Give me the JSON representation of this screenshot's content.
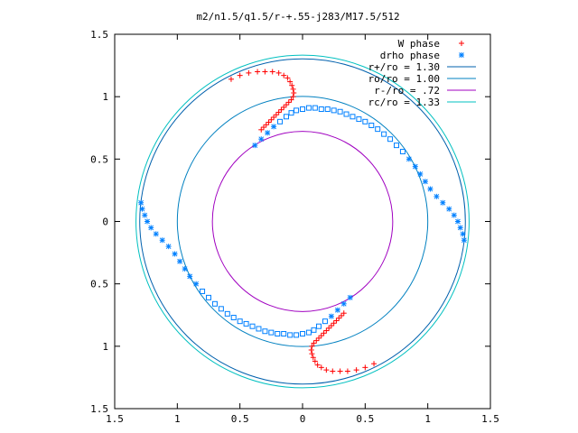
{
  "chart_data": {
    "type": "scatter",
    "title": "m2/n1.5/q1.5/r-+.55-j283/M17.5/512",
    "xlabel": "",
    "ylabel": "",
    "xlim": [
      -1.5,
      1.5
    ],
    "ylim": [
      -1.5,
      1.5
    ],
    "xticks": [
      {
        "value": -1.5,
        "label": "1.5"
      },
      {
        "value": -1.0,
        "label": "1"
      },
      {
        "value": -0.5,
        "label": "0.5"
      },
      {
        "value": 0.0,
        "label": "0"
      },
      {
        "value": 0.5,
        "label": "0.5"
      },
      {
        "value": 1.0,
        "label": "1"
      },
      {
        "value": 1.5,
        "label": "1.5"
      }
    ],
    "yticks": [
      {
        "value": 1.5,
        "label": "1.5"
      },
      {
        "value": 1.0,
        "label": "1"
      },
      {
        "value": 0.5,
        "label": "0.5"
      },
      {
        "value": 0.0,
        "label": "0"
      },
      {
        "value": -0.5,
        "label": "0.5"
      },
      {
        "value": -1.0,
        "label": "1"
      },
      {
        "value": -1.5,
        "label": "1.5"
      }
    ],
    "grid": false,
    "legend_position": "top-right",
    "series": [
      {
        "name": "W phase",
        "marker": "plus",
        "color": "#ff0000",
        "points": [
          [
            -0.57,
            1.14
          ],
          [
            -0.5,
            1.17
          ],
          [
            -0.43,
            1.19
          ],
          [
            -0.36,
            1.2
          ],
          [
            -0.3,
            1.2
          ],
          [
            -0.24,
            1.2
          ],
          [
            -0.19,
            1.19
          ],
          [
            -0.15,
            1.17
          ],
          [
            -0.12,
            1.15
          ],
          [
            -0.1,
            1.12
          ],
          [
            -0.085,
            1.09
          ],
          [
            -0.075,
            1.06
          ],
          [
            -0.07,
            1.03
          ],
          [
            -0.075,
            1.0
          ],
          [
            -0.09,
            0.975
          ],
          [
            -0.11,
            0.955
          ],
          [
            -0.13,
            0.935
          ],
          [
            -0.15,
            0.915
          ],
          [
            -0.17,
            0.895
          ],
          [
            -0.19,
            0.875
          ],
          [
            -0.21,
            0.855
          ],
          [
            -0.23,
            0.835
          ],
          [
            -0.25,
            0.815
          ],
          [
            -0.27,
            0.795
          ],
          [
            -0.29,
            0.775
          ],
          [
            -0.31,
            0.755
          ],
          [
            -0.33,
            0.735
          ],
          [
            0.57,
            -1.14
          ],
          [
            0.5,
            -1.17
          ],
          [
            0.43,
            -1.19
          ],
          [
            0.36,
            -1.2
          ],
          [
            0.3,
            -1.2
          ],
          [
            0.24,
            -1.2
          ],
          [
            0.19,
            -1.19
          ],
          [
            0.15,
            -1.17
          ],
          [
            0.12,
            -1.15
          ],
          [
            0.1,
            -1.12
          ],
          [
            0.085,
            -1.09
          ],
          [
            0.075,
            -1.06
          ],
          [
            0.07,
            -1.03
          ],
          [
            0.075,
            -1.0
          ],
          [
            0.09,
            -0.975
          ],
          [
            0.11,
            -0.955
          ],
          [
            0.13,
            -0.935
          ],
          [
            0.15,
            -0.915
          ],
          [
            0.17,
            -0.895
          ],
          [
            0.19,
            -0.875
          ],
          [
            0.21,
            -0.855
          ],
          [
            0.23,
            -0.835
          ],
          [
            0.25,
            -0.815
          ],
          [
            0.27,
            -0.795
          ],
          [
            0.29,
            -0.775
          ],
          [
            0.31,
            -0.755
          ],
          [
            0.33,
            -0.735
          ]
        ]
      },
      {
        "name": "drho phase",
        "marker": "star",
        "color": "#0080ff",
        "points": [
          [
            -0.38,
            0.61
          ],
          [
            -0.33,
            0.66
          ],
          [
            -0.28,
            0.71
          ],
          [
            -0.23,
            0.76
          ],
          [
            -0.18,
            0.8
          ],
          [
            -0.13,
            0.84
          ],
          [
            -0.09,
            0.87
          ],
          [
            -0.05,
            0.89
          ],
          [
            0.0,
            0.9
          ],
          [
            0.05,
            0.91
          ],
          [
            0.1,
            0.91
          ],
          [
            0.15,
            0.9
          ],
          [
            0.2,
            0.9
          ],
          [
            0.25,
            0.89
          ],
          [
            0.3,
            0.88
          ],
          [
            0.35,
            0.86
          ],
          [
            0.4,
            0.84
          ],
          [
            0.45,
            0.82
          ],
          [
            0.5,
            0.8
          ],
          [
            0.55,
            0.77
          ],
          [
            0.6,
            0.74
          ],
          [
            0.65,
            0.7
          ],
          [
            0.7,
            0.66
          ],
          [
            0.75,
            0.61
          ],
          [
            0.8,
            0.56
          ],
          [
            0.85,
            0.5
          ],
          [
            0.9,
            0.44
          ],
          [
            0.94,
            0.38
          ],
          [
            0.98,
            0.32
          ],
          [
            1.02,
            0.26
          ],
          [
            1.07,
            0.2
          ],
          [
            1.12,
            0.15
          ],
          [
            1.17,
            0.1
          ],
          [
            1.21,
            0.05
          ],
          [
            1.24,
            0.0
          ],
          [
            1.26,
            -0.05
          ],
          [
            1.28,
            -0.1
          ],
          [
            1.29,
            -0.15
          ],
          [
            0.38,
            -0.61
          ],
          [
            0.33,
            -0.66
          ],
          [
            0.28,
            -0.71
          ],
          [
            0.23,
            -0.76
          ],
          [
            0.18,
            -0.8
          ],
          [
            0.13,
            -0.84
          ],
          [
            0.09,
            -0.87
          ],
          [
            0.05,
            -0.89
          ],
          [
            0.0,
            -0.9
          ],
          [
            -0.05,
            -0.91
          ],
          [
            -0.1,
            -0.91
          ],
          [
            -0.15,
            -0.9
          ],
          [
            -0.2,
            -0.9
          ],
          [
            -0.25,
            -0.89
          ],
          [
            -0.3,
            -0.88
          ],
          [
            -0.35,
            -0.86
          ],
          [
            -0.4,
            -0.84
          ],
          [
            -0.45,
            -0.82
          ],
          [
            -0.5,
            -0.8
          ],
          [
            -0.55,
            -0.77
          ],
          [
            -0.6,
            -0.74
          ],
          [
            -0.65,
            -0.7
          ],
          [
            -0.7,
            -0.66
          ],
          [
            -0.75,
            -0.61
          ],
          [
            -0.8,
            -0.56
          ],
          [
            -0.85,
            -0.5
          ],
          [
            -0.9,
            -0.44
          ],
          [
            -0.94,
            -0.38
          ],
          [
            -0.98,
            -0.32
          ],
          [
            -1.02,
            -0.26
          ],
          [
            -1.07,
            -0.2
          ],
          [
            -1.12,
            -0.15
          ],
          [
            -1.17,
            -0.1
          ],
          [
            -1.21,
            -0.05
          ],
          [
            -1.24,
            0.0
          ],
          [
            -1.26,
            0.05
          ],
          [
            -1.28,
            0.1
          ],
          [
            -1.29,
            0.15
          ]
        ]
      },
      {
        "name": "r+/ro = 1.30",
        "type": "circle",
        "radius": 1.3,
        "color": "#0060ad"
      },
      {
        "name": "ro/ro = 1.00",
        "type": "circle",
        "radius": 1.0,
        "color": "#0080c0"
      },
      {
        "name": "r-/ro =  .72",
        "type": "circle",
        "radius": 0.72,
        "color": "#a000c0"
      },
      {
        "name": "rc/ro = 1.33",
        "type": "circle",
        "radius": 1.33,
        "color": "#00c0c0"
      }
    ]
  }
}
